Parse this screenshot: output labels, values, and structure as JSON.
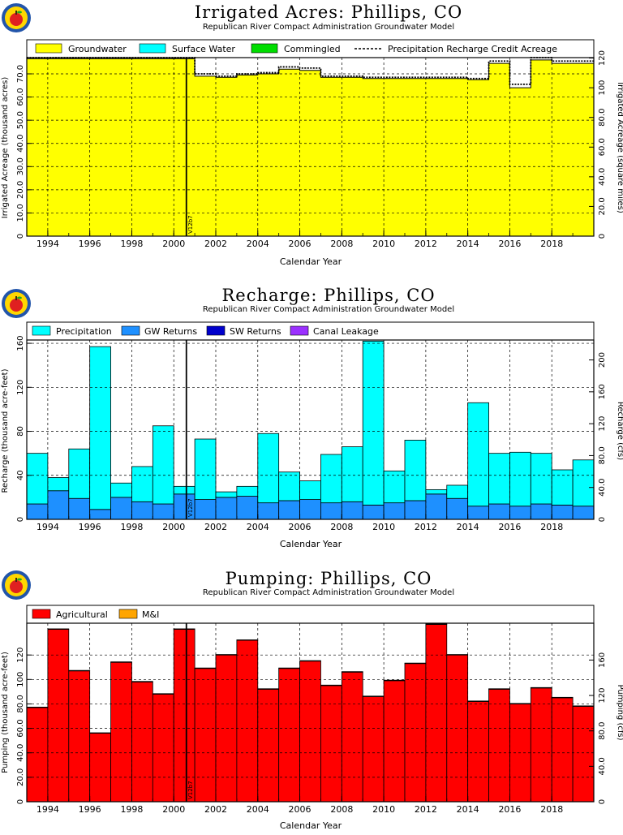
{
  "colors": {
    "groundwater": "#ffff00",
    "surface_water": "#00ffff",
    "commingled": "#00dd00",
    "precipitation": "#00ffff",
    "gw_returns": "#1e90ff",
    "sw_returns": "#0000cc",
    "canal_leakage": "#9b30ff",
    "agricultural": "#ff0000",
    "mi": "#ffa500"
  },
  "chart_data": [
    {
      "type": "area",
      "title": "Irrigated Acres: Phillips, CO",
      "subtitle": "Republican River Compact Administration Groundwater Model",
      "xlabel": "Calendar Year",
      "ylabel": "Irrigated Acreage (thousand acres)",
      "y2label": "Irrigated Acreage (square miles)",
      "xlim": [
        1993,
        2020
      ],
      "ylim": [
        0,
        77
      ],
      "y2lim": [
        0,
        120.3
      ],
      "x_ticks": [
        "1994",
        "1996",
        "1998",
        "2000",
        "2002",
        "2004",
        "2006",
        "2008",
        "2010",
        "2012",
        "2014",
        "2016",
        "2018"
      ],
      "y_ticks": [
        "0",
        "10.0",
        "20.0",
        "30.0",
        "40.0",
        "50.0",
        "60.0",
        "70.0"
      ],
      "y2_ticks": [
        "0",
        "20.0",
        "40.0",
        "60.0",
        "80.0",
        "100",
        "120"
      ],
      "legend": [
        "Groundwater",
        "Surface Water",
        "Commingled",
        "Precipitation Recharge Credit Acreage"
      ],
      "marker_label": "V12b7",
      "marker_x": 2000.6,
      "grid": true,
      "series": [
        {
          "name": "Groundwater",
          "x": [
            1993,
            2000.6,
            2001,
            2002,
            2003,
            2004,
            2005,
            2006,
            2007,
            2008,
            2009,
            2010,
            2011,
            2012,
            2013,
            2014,
            2015,
            2016,
            2017,
            2018,
            2019
          ],
          "values": [
            76.5,
            76.5,
            69.0,
            68.5,
            69.5,
            70.0,
            72.0,
            71.5,
            68.5,
            68.5,
            68.0,
            68.0,
            68.0,
            68.0,
            68.0,
            67.5,
            74.5,
            64.0,
            76.0,
            74.5,
            74.5
          ]
        },
        {
          "name": "Surface Water",
          "x": [
            1993,
            2019
          ],
          "values": [
            0,
            0
          ]
        },
        {
          "name": "Commingled",
          "x": [
            1993,
            2019
          ],
          "values": [
            0,
            0
          ]
        },
        {
          "name": "Precipitation Recharge Credit Acreage",
          "x": [
            1993,
            2000.6,
            2001,
            2002,
            2003,
            2004,
            2005,
            2006,
            2007,
            2008,
            2009,
            2010,
            2011,
            2012,
            2013,
            2014,
            2015,
            2016,
            2017,
            2018,
            2019
          ],
          "values": [
            77.0,
            77.0,
            70.0,
            69.0,
            70.0,
            70.5,
            73.0,
            72.5,
            69.0,
            69.0,
            68.5,
            68.5,
            68.5,
            68.5,
            68.5,
            68.0,
            75.5,
            65.5,
            77.0,
            75.5,
            75.5
          ]
        }
      ]
    },
    {
      "type": "bar",
      "title": "Recharge: Phillips, CO",
      "subtitle": "Republican River Compact Administration Groundwater Model",
      "xlabel": "Calendar Year",
      "ylabel": "Recharge (thousand acre-feet)",
      "y2label": "Recharge (cfs)",
      "xlim": [
        1993,
        2020
      ],
      "ylim": [
        0,
        163
      ],
      "y2lim": [
        0,
        225
      ],
      "x_ticks": [
        "1994",
        "1996",
        "1998",
        "2000",
        "2002",
        "2004",
        "2006",
        "2008",
        "2010",
        "2012",
        "2014",
        "2016",
        "2018"
      ],
      "y_ticks": [
        "0",
        "40",
        "80",
        "120",
        "160"
      ],
      "y2_ticks": [
        "0",
        "40.0",
        "80.0",
        "120",
        "160",
        "200"
      ],
      "legend": [
        "Precipitation",
        "GW Returns",
        "SW Returns",
        "Canal Leakage"
      ],
      "marker_label": "V12b7",
      "marker_x": 2000.6,
      "grid": true,
      "categories": [
        "1993",
        "1994",
        "1995",
        "1996",
        "1997",
        "1998",
        "1999",
        "2000",
        "2001",
        "2002",
        "2003",
        "2004",
        "2005",
        "2006",
        "2007",
        "2008",
        "2009",
        "2010",
        "2011",
        "2012",
        "2013",
        "2014",
        "2015",
        "2016",
        "2017",
        "2018",
        "2019"
      ],
      "series": [
        {
          "name": "GW Returns",
          "values": [
            14,
            26,
            19,
            9,
            20,
            16,
            14,
            23,
            18,
            20,
            21,
            15,
            17,
            18,
            15,
            16,
            13,
            15,
            17,
            23,
            19,
            12,
            14,
            12,
            14,
            13,
            12
          ]
        },
        {
          "name": "Precipitation",
          "values": [
            46,
            12,
            45,
            148,
            13,
            32,
            71,
            7,
            55,
            5,
            9,
            63,
            26,
            17,
            44,
            50,
            149,
            29,
            55,
            4,
            12,
            94,
            46,
            49,
            46,
            32,
            42
          ]
        },
        {
          "name": "SW Returns",
          "values": [
            0,
            0,
            0,
            0,
            0,
            0,
            0,
            0,
            0,
            0,
            0,
            0,
            0,
            0,
            0,
            0,
            0,
            0,
            0,
            0,
            0,
            0,
            0,
            0,
            0,
            0,
            0
          ]
        },
        {
          "name": "Canal Leakage",
          "values": [
            0,
            0,
            0,
            0,
            0,
            0,
            0,
            0,
            0,
            0,
            0,
            0,
            0,
            0,
            0,
            0,
            0,
            0,
            0,
            0,
            0,
            0,
            0,
            0,
            0,
            0,
            0
          ]
        }
      ]
    },
    {
      "type": "bar",
      "title": "Pumping: Phillips, CO",
      "subtitle": "Republican River Compact Administration Groundwater Model",
      "xlabel": "Calendar Year",
      "ylabel": "Pumping (thousand acre-feet)",
      "y2label": "Pumping (cfs)",
      "xlim": [
        1993,
        2020
      ],
      "ylim": [
        0,
        146
      ],
      "y2lim": [
        0,
        201.6
      ],
      "x_ticks": [
        "1994",
        "1996",
        "1998",
        "2000",
        "2002",
        "2004",
        "2006",
        "2008",
        "2010",
        "2012",
        "2014",
        "2016",
        "2018"
      ],
      "y_ticks": [
        "0",
        "20.0",
        "40.0",
        "60.0",
        "80.0",
        "100",
        "120"
      ],
      "y2_ticks": [
        "0",
        "40.0",
        "80.0",
        "120",
        "160"
      ],
      "legend": [
        "Agricultural",
        "M&I"
      ],
      "marker_label": "V12b7",
      "marker_x": 2000.6,
      "grid": true,
      "categories": [
        "1993",
        "1994",
        "1995",
        "1996",
        "1997",
        "1998",
        "1999",
        "2000",
        "2001",
        "2002",
        "2003",
        "2004",
        "2005",
        "2006",
        "2007",
        "2008",
        "2009",
        "2010",
        "2011",
        "2012",
        "2013",
        "2014",
        "2015",
        "2016",
        "2017",
        "2018",
        "2019"
      ],
      "series": [
        {
          "name": "Agricultural",
          "values": [
            77,
            141,
            107,
            56,
            114,
            98,
            88,
            141,
            109,
            120,
            132,
            92,
            109,
            115,
            95,
            106,
            86,
            99,
            113,
            145,
            120,
            82,
            92,
            80,
            93,
            85,
            78
          ]
        },
        {
          "name": "M&I",
          "values": [
            0.4,
            0.4,
            0.4,
            0.4,
            0.4,
            0.4,
            0.4,
            0.4,
            0.4,
            0.4,
            0.4,
            0.4,
            0.4,
            0.4,
            0.4,
            0.4,
            0.4,
            0.4,
            0.4,
            0.4,
            0.4,
            0.4,
            0.4,
            0.4,
            0.4,
            0.4,
            0.4
          ]
        }
      ]
    }
  ]
}
